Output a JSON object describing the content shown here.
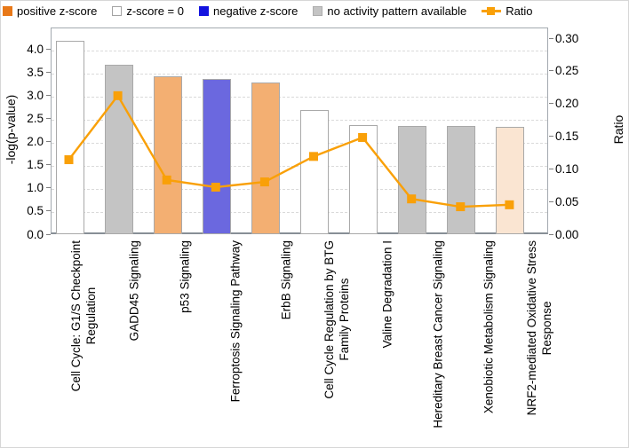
{
  "legend": {
    "items": [
      {
        "label": "positive z-score",
        "swatch": "square",
        "fill": "#E87818",
        "border": "#E87818"
      },
      {
        "label": "z-score = 0",
        "swatch": "square",
        "fill": "#FFFFFF",
        "border": "#A3A3A3"
      },
      {
        "label": "negative z-score",
        "swatch": "square",
        "fill": "#1313DF",
        "border": "#1313DF"
      },
      {
        "label": "no activity pattern available",
        "swatch": "square",
        "fill": "#C4C4C4",
        "border": "#ADADAD"
      },
      {
        "label": "Ratio",
        "swatch": "line-marker",
        "fill": "#F9A008",
        "border": "#F9A008"
      }
    ]
  },
  "chart_data": {
    "type": "bar",
    "subtype": "bars-with-line-overlay",
    "categories": [
      "Cell Cycle: G1/S Checkpoint\nRegulation",
      "GADD45 Signaling",
      "p53 Signaling",
      "Ferroptosis Signaling Pathway",
      "ErbB Signaling",
      "Cell Cycle Regulation by BTG\nFamily Proteins",
      "Valine Degradation I",
      "Hereditary Breast Cancer Signaling",
      "Xenobiotic Metabolism Signaling",
      "NRF2-mediated Oxidative Stress\nResponse"
    ],
    "series": [
      {
        "name": "-log(p-value)",
        "type": "bar",
        "values": [
          4.22,
          3.69,
          3.44,
          3.38,
          3.31,
          2.71,
          2.38,
          2.37,
          2.36,
          2.35
        ],
        "bar_colors": [
          "#FFFFFF",
          "#C4C4C4",
          "#F3AF72",
          "#6B68DF",
          "#F3AF72",
          "#FFFFFF",
          "#FFFFFF",
          "#C4C4C4",
          "#C4C4C4",
          "#FAE5D2"
        ],
        "bar_zscore_category": [
          "z-score = 0",
          "no activity pattern available",
          "positive z-score",
          "negative z-score",
          "positive z-score",
          "z-score = 0",
          "z-score = 0",
          "no activity pattern available",
          "no activity pattern available",
          "positive z-score"
        ],
        "bar_border_color": "#A9A9A9"
      },
      {
        "name": "Ratio",
        "type": "line",
        "values": [
          0.114,
          0.212,
          0.083,
          0.072,
          0.08,
          0.119,
          0.148,
          0.054,
          0.042,
          0.045
        ],
        "color": "#F9A008",
        "marker": "square"
      }
    ],
    "axes": {
      "left": {
        "label": "-log(p-value)",
        "tick_labels": [
          "0.0",
          "0.5",
          "1.0",
          "1.5",
          "2.0",
          "2.5",
          "3.0",
          "3.5",
          "4.0"
        ],
        "range": [
          0,
          4.48
        ]
      },
      "right": {
        "label": "Ratio",
        "tick_labels": [
          "0.00",
          "0.05",
          "0.10",
          "0.15",
          "0.20",
          "0.25",
          "0.30"
        ],
        "range": [
          0,
          0.3163
        ]
      }
    },
    "grid": {
      "horizontal": true,
      "style": "dashed",
      "color": "#DADADA"
    },
    "legend_position": "top"
  }
}
